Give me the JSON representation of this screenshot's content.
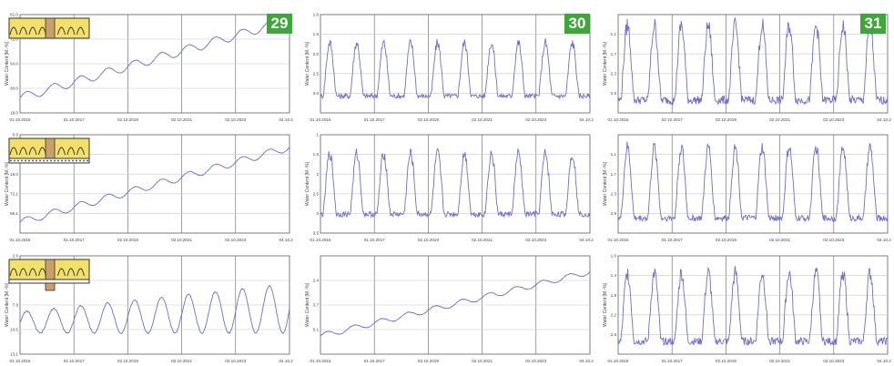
{
  "colors": {
    "line": "#6f6fc8",
    "grid": "#c8c8c8",
    "axis": "#606060",
    "badge": "#3fa63a",
    "wood": "#c9a06a",
    "insulation": "#f2e06b"
  },
  "badges": [
    "29",
    "30",
    "31"
  ],
  "chart_data": [
    {
      "id": "r1c1",
      "type": "line",
      "ylabel": "Water Content [M.-%]",
      "yticks": [
        "18.0",
        "30.0",
        "54.0",
        "72.0",
        "91.0"
      ],
      "ylim": [
        0,
        91
      ],
      "xticks": [
        "01.10.2015",
        "01.10.2017",
        "02.10.2019",
        "02.10.2021",
        "02.10.2023",
        "04.10.2025"
      ],
      "trend": {
        "start": 14,
        "end": 86,
        "amp": 4,
        "noise": 0.6
      },
      "icon": "roof-insulated-rafter"
    },
    {
      "id": "r1c2",
      "type": "line",
      "ylabel": "Water Content [M.-%]",
      "yticks": [
        "",
        "3.0",
        "2.5",
        "2.0",
        "1.5",
        "1.0"
      ],
      "ylim": [
        0.5,
        4.0
      ],
      "xticks": [
        "01.10.2015",
        "01.10.2017",
        "02.10.2019",
        "02.10.2021",
        "02.10.2023",
        "04.10.2025"
      ],
      "seasonal": {
        "base": 1.1,
        "peak": 3.0,
        "noise": 0.18
      },
      "icon": null
    },
    {
      "id": "r1c3",
      "type": "line",
      "ylabel": "Water Content [M.-%]",
      "yticks": [
        "",
        "2.6",
        "2.3",
        "1.7",
        "1.1",
        ""
      ],
      "ylim": [
        0.7,
        3.0
      ],
      "xticks": [
        "01.10.2015",
        "02.10.2017",
        "02.10.2019",
        "02.10.2021",
        "02.10.2023",
        "04.10.2025"
      ],
      "seasonal": {
        "base": 1.0,
        "peak": 2.75,
        "noise": 0.2
      },
      "icon": null
    },
    {
      "id": "r2c1",
      "type": "line",
      "ylabel": "Water Content [M.-%]",
      "yticks": [
        "",
        "96.1",
        "72.1",
        "18.0",
        "23.7",
        "0.0"
      ],
      "ylim": [
        0,
        110
      ],
      "xticks": [
        "01.10.2015",
        "01.10.2017",
        "02.10.2019",
        "02.10.2021",
        "02.10.2023",
        "04.10.2025"
      ],
      "trend": {
        "start": 12,
        "end": 96,
        "amp": 4,
        "noise": 0.6
      },
      "icon": "roof-insulated-rafter-membrane"
    },
    {
      "id": "r2c2",
      "type": "line",
      "ylabel": "Water Content [M.-%]",
      "yticks": [
        "3.5",
        "3",
        "2.5",
        "2",
        "1.5",
        "1"
      ],
      "ylim": [
        1.0,
        3.6
      ],
      "xticks": [
        "01.10.2015",
        "01.10.2017",
        "02.10.2019",
        "02.10.2021",
        "02.10.2023",
        "04.10.2025"
      ],
      "seasonal": {
        "base": 1.5,
        "peak": 3.1,
        "noise": 0.15
      },
      "icon": null
    },
    {
      "id": "r2c3",
      "type": "line",
      "ylabel": "Water Content [M.-%]",
      "yticks": [
        "",
        "2.8",
        "2.3",
        "1.7",
        "1.1",
        ""
      ],
      "ylim": [
        0.7,
        3.0
      ],
      "xticks": [
        "01.10.2015",
        "01.10.2017",
        "02.10.2019",
        "02.10.2021",
        "02.10.2023",
        "04.10.2025"
      ],
      "seasonal": {
        "base": 1.05,
        "peak": 2.7,
        "noise": 0.15
      },
      "icon": null
    },
    {
      "id": "r3c1",
      "type": "line",
      "ylabel": "Water Content [M.-%]",
      "yticks": [
        "13.1",
        "10.5",
        "7.9",
        "5.2",
        "2.6"
      ],
      "ylim": [
        0,
        14
      ],
      "xticks": [
        "01.10.2015",
        "02.10.2017",
        "02.10.2019",
        "02.10.2021",
        "02.10.2023",
        "04.10.2025"
      ],
      "growing": {
        "base": 3.0,
        "startAmp": 3.0,
        "endAmp": 7.0,
        "noise": 0.2
      },
      "icon": "roof-insulated-rafter-open"
    },
    {
      "id": "r3c2",
      "type": "line",
      "ylabel": "Water Content [M.-%]",
      "yticks": [
        "",
        "5.1",
        "3.7",
        "2.4",
        ""
      ],
      "ylim": [
        1.5,
        5.8
      ],
      "xticks": [
        "01.10.2015",
        "01.10.2017",
        "02.10.2019",
        "02.10.2021",
        "02.10.2023",
        "04.10.2025"
      ],
      "trend": {
        "start": 2.3,
        "end": 5.1,
        "amp": 0.12,
        "noise": 0.03
      },
      "icon": null
    },
    {
      "id": "r3c3",
      "type": "line",
      "ylabel": "Water Content [M.-%]",
      "yticks": [
        "",
        "2.6",
        "2.2",
        "1.8",
        "1.4",
        "1.0"
      ],
      "ylim": [
        0.7,
        3.0
      ],
      "xticks": [
        "01.10.2015",
        "01.10.2017",
        "02.10.2019",
        "02.10.2021",
        "02.10.2023",
        "04.10.2025"
      ],
      "seasonal": {
        "base": 1.0,
        "peak": 2.6,
        "noise": 0.18
      },
      "icon": null
    }
  ]
}
